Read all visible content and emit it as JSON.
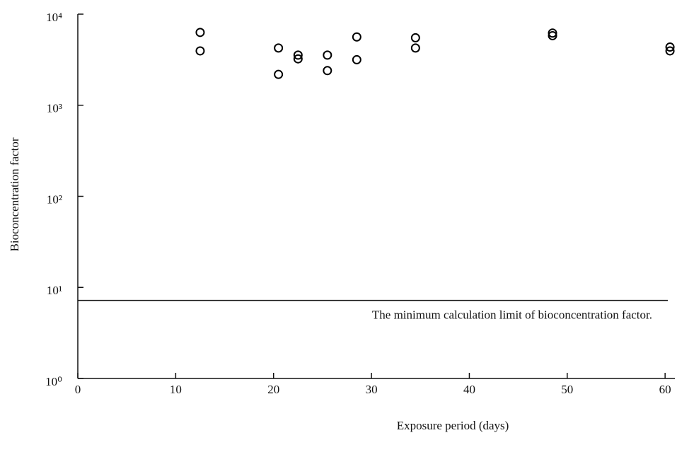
{
  "chart_data": {
    "type": "scatter",
    "x_label": "Exposure period (days)",
    "y_label": "Bioconcentration factor",
    "xlim": [
      0,
      61
    ],
    "xticks": [
      0,
      10,
      20,
      30,
      40,
      50,
      60
    ],
    "ylim": [
      1,
      10000
    ],
    "log_y": true,
    "yticks": [
      {
        "value": 1,
        "label": "10⁰"
      },
      {
        "value": 10,
        "label": "10¹"
      },
      {
        "value": 100,
        "label": "10²"
      },
      {
        "value": 1000,
        "label": "10³"
      },
      {
        "value": 10000,
        "label": "10⁴"
      }
    ],
    "series": [
      {
        "color": "#000000",
        "x": [
          12.5,
          12.5,
          20.5,
          20.5,
          22.5,
          22.5,
          25.5,
          25.5,
          28.5,
          28.5,
          34.5,
          34.5,
          48.5,
          48.5,
          60.5,
          60.5
        ],
        "values": [
          6300,
          3950,
          4250,
          2180,
          3550,
          3230,
          3550,
          2400,
          5620,
          3160,
          5500,
          4250,
          6200,
          5800,
          4350,
          3950
        ]
      }
    ],
    "threshold": {
      "value": 7.2,
      "label": "The minimum calculation limit of bioconcentration factor."
    }
  }
}
